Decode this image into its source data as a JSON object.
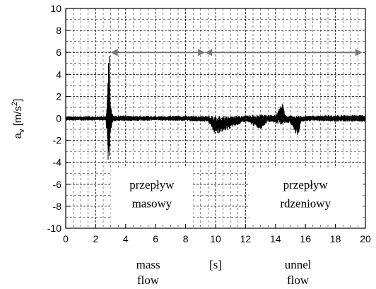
{
  "chart_data": {
    "type": "line",
    "ylabel": "a_v [m/s^2]",
    "ylabel_main": "a",
    "ylabel_sub": "v",
    "ylabel_unit": " [m/s",
    "ylabel_sup": "2",
    "ylabel_close": "]",
    "xlim": [
      0,
      20
    ],
    "ylim": [
      -10,
      10
    ],
    "xticks": [
      0,
      2,
      4,
      6,
      8,
      10,
      12,
      14,
      16,
      18,
      20
    ],
    "yticks": [
      -10,
      -8,
      -6,
      -4,
      -2,
      0,
      2,
      4,
      6,
      8,
      10
    ],
    "grid": true,
    "x_unit_label": "[s]",
    "bottom_labels": [
      {
        "line1": "mass",
        "line2": "flow",
        "x_center": 5.5
      },
      {
        "line1": "unnel",
        "line2": "flow",
        "x_center": 15.5
      }
    ],
    "regions": [
      {
        "x_start": 3,
        "x_end": 8.5,
        "y_top": -4.5,
        "y_bottom": -9.5,
        "label_line1": "przepływ",
        "label_line2": "masowy"
      },
      {
        "x_start": 12.2,
        "x_end": 19.8,
        "y_top": -4.5,
        "y_bottom": -9.5,
        "label_line1": "przepływ",
        "label_line2": "rdzeniowy"
      }
    ],
    "arrows": [
      {
        "x_start": 3,
        "x_end": 9.3,
        "y": 6
      },
      {
        "x_start": 9.3,
        "x_end": 19.8,
        "y": 6
      }
    ],
    "series": [
      {
        "baseline_noise": 0.2,
        "x": [
          2.7,
          2.75,
          2.8,
          2.85,
          2.9,
          2.95,
          3.0,
          3.05,
          3.1,
          3.2,
          3.4,
          4.0,
          6.0,
          8.0,
          9.0,
          9.5,
          10.0,
          12.0,
          13.0,
          13.5,
          14.0,
          14.5,
          14.6,
          14.8,
          15.0,
          15.5,
          15.7,
          16.5,
          18.0,
          20.0
        ],
        "y_max": [
          0.5,
          1.5,
          3.0,
          5.0,
          6.5,
          4.0,
          1.5,
          0.8,
          0.5,
          0.3,
          0.25,
          0.25,
          0.2,
          0.25,
          0.2,
          0.25,
          0.2,
          0.25,
          0.4,
          0.3,
          0.3,
          1.5,
          0.5,
          0.2,
          0.3,
          0.3,
          0.2,
          0.25,
          0.3,
          0.3
        ],
        "y_min": [
          -0.7,
          -1.5,
          -3.0,
          -4.8,
          -4.6,
          -3.0,
          -1.5,
          -0.8,
          -0.5,
          -0.3,
          -0.25,
          -0.25,
          -0.2,
          -0.25,
          -0.3,
          -0.3,
          -1.5,
          -0.3,
          -1.0,
          -0.3,
          -0.4,
          -0.7,
          -0.5,
          -0.4,
          -0.5,
          -1.8,
          -0.3,
          -0.25,
          -0.3,
          -0.3
        ]
      }
    ]
  }
}
